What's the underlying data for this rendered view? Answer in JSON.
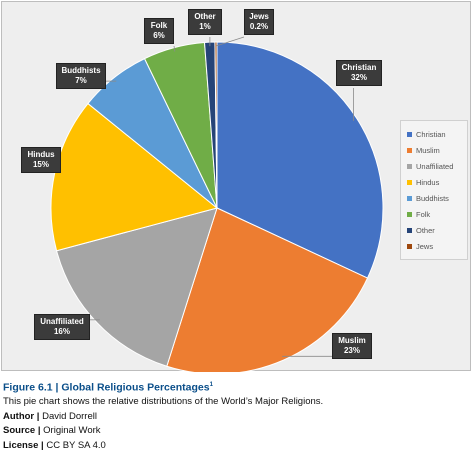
{
  "colors": {
    "Christian": "#4472c4",
    "Muslim": "#ed7d31",
    "Unaffiliated": "#a5a5a5",
    "Hindus": "#ffc000",
    "Buddhists": "#5b9bd5",
    "Folk": "#70ad47",
    "Other": "#264478",
    "Jews": "#9e480e"
  },
  "chart_data": {
    "type": "pie",
    "categories": [
      "Christian",
      "Muslim",
      "Unaffiliated",
      "Hindus",
      "Buddhists",
      "Folk",
      "Other",
      "Jews"
    ],
    "values": [
      32,
      23,
      16,
      15,
      7,
      6,
      1,
      0.2
    ],
    "value_labels": [
      "32%",
      "23%",
      "16%",
      "15%",
      "7%",
      "6%",
      "1%",
      "0.2%"
    ],
    "legend": [
      "Christian",
      "Muslim",
      "Unaffiliated",
      "Hindus",
      "Buddhists",
      "Folk",
      "Other",
      "Jews"
    ],
    "legend_position": "right"
  },
  "caption": {
    "figure_label": "Figure 6.1 | Global Religious Percentages",
    "footnote_marker": "1",
    "description": "This pie chart shows the relative distributions of the World’s Major Religions.",
    "author_label": "Author |",
    "author_value": " David Dorrell",
    "source_label": "Source |",
    "source_value": " Original Work",
    "license_label": "License |",
    "license_value": " CC BY SA 4.0"
  }
}
